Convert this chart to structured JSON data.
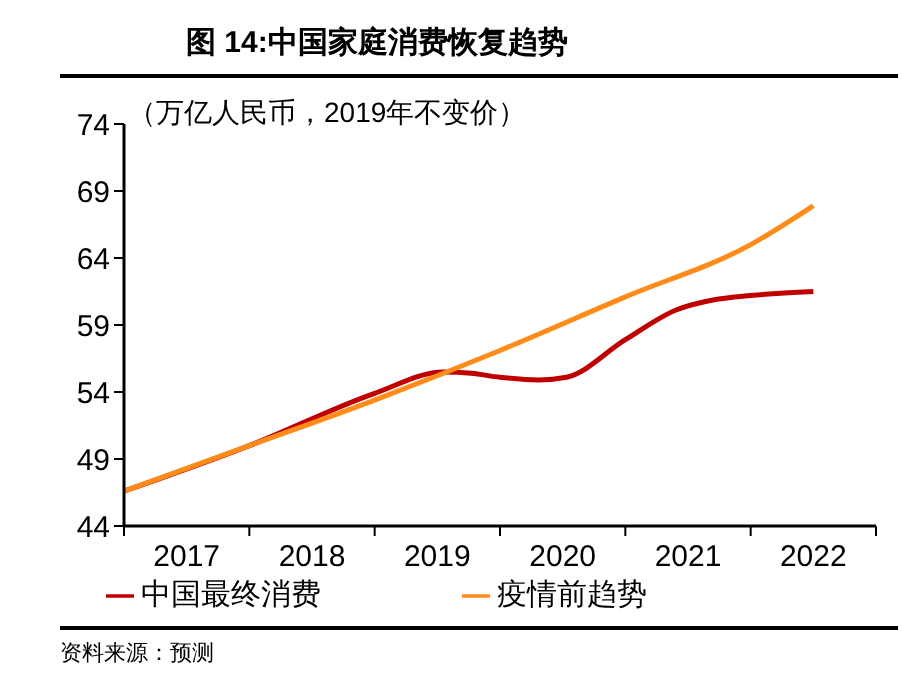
{
  "chart_data": {
    "type": "line",
    "title": "图 14:中国家庭消费恢复趋势",
    "ylabel": "（万亿人民币，2019年不变价）",
    "annotations": [
      "资料来源：预测"
    ],
    "xlim": [
      2016.5,
      2022.5
    ],
    "xticks": [
      2017,
      2018,
      2019,
      2020,
      2021,
      2022
    ],
    "ylim": [
      44,
      74
    ],
    "yticks": [
      44,
      49,
      54,
      59,
      64,
      69,
      74
    ],
    "grid": false,
    "legend": "bottom",
    "marker": "none",
    "series": [
      {
        "name": "中国最终消费",
        "color": "#c00000",
        "x": [
          2016.5,
          2017.5,
          2018.5,
          2019.05,
          2019.27,
          2019.5,
          2019.81,
          2020.03,
          2020.5,
          2020.9,
          2021.22,
          2021.5,
          2022
        ],
        "values": [
          46.6,
          50.0,
          53.9,
          55.5,
          55.4,
          55.1,
          54.9,
          55.1,
          57.9,
          60.1,
          60.9,
          61.2,
          61.5
        ]
      },
      {
        "name": "疫情前趋势",
        "color": "#ff8c1a",
        "x": [
          2016.5,
          2017.5,
          2018.5,
          2019.05,
          2019.5,
          2020.5,
          2021.5,
          2022
        ],
        "values": [
          46.6,
          50.0,
          53.4,
          55.4,
          57.1,
          61.1,
          65.0,
          67.9
        ]
      }
    ]
  }
}
